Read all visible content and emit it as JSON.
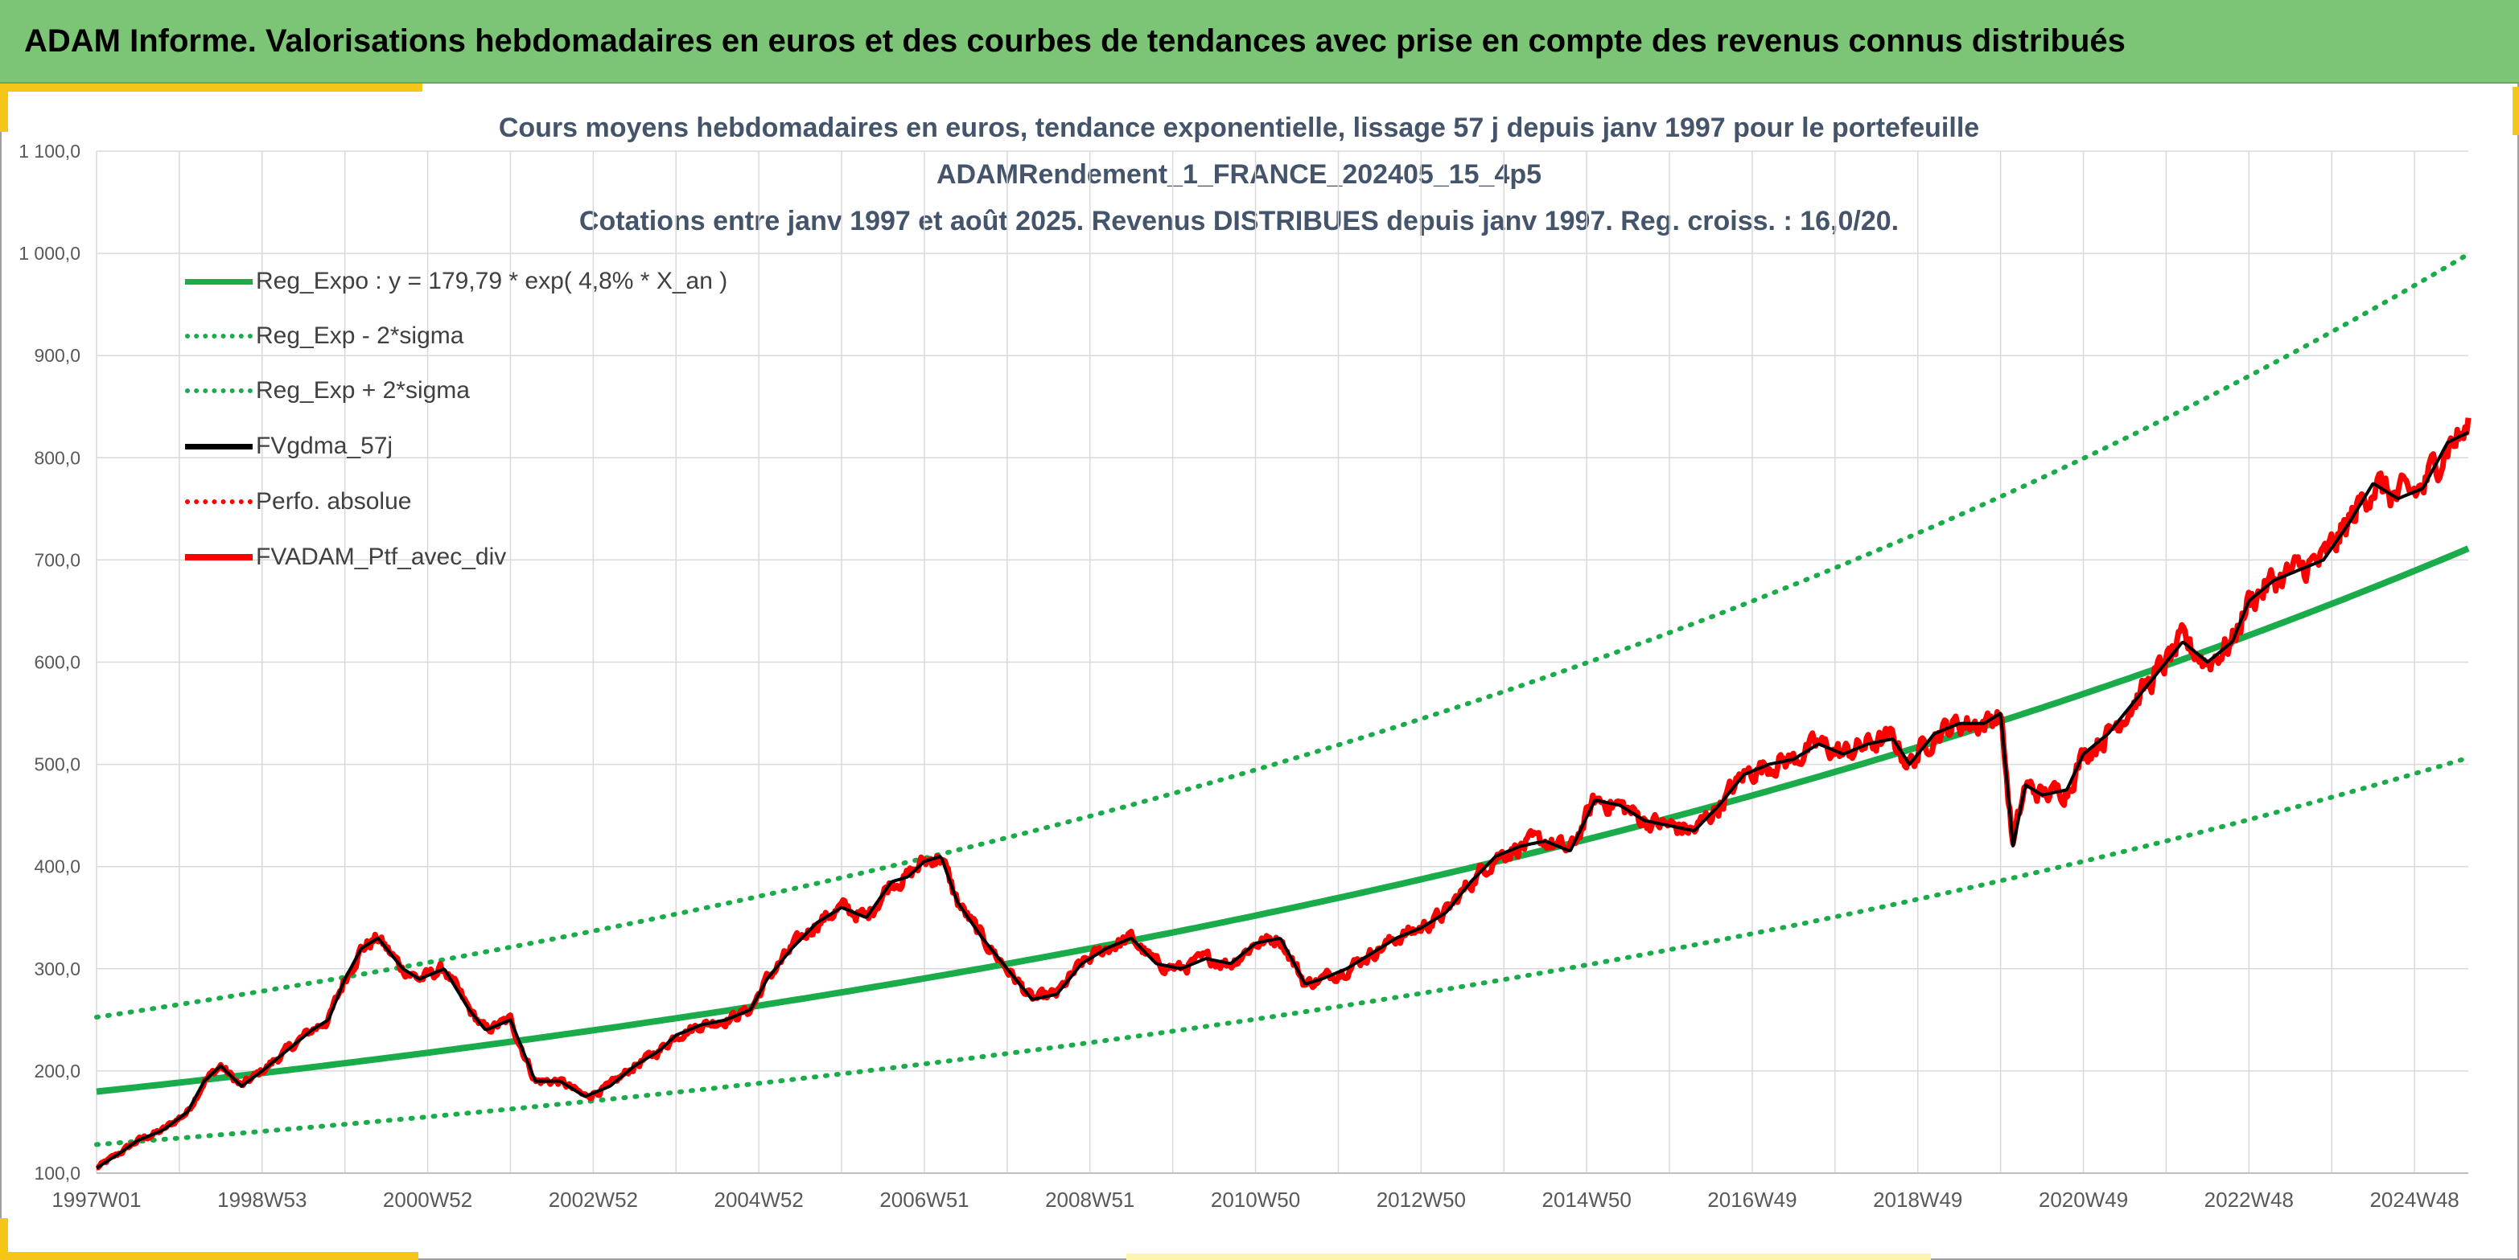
{
  "banner": {
    "title": "ADAM Informe. Valorisations hebdomadaires en euros et des courbes de tendances avec prise en compte des revenus connus distribués"
  },
  "chart_data": {
    "type": "line",
    "title_lines": [
      "Cours moyens hebdomadaires en euros, tendance exponentielle, lissage 57 j depuis janv 1997 pour le portefeuille",
      "ADAMRendement_1_FRANCE_202405_15_4p5",
      "Cotations entre janv 1997 et août 2025. Revenus DISTRIBUES depuis janv 1997. Reg. croiss. : 16,0/20."
    ],
    "xlabel": "",
    "ylabel": "",
    "x_tick_labels": [
      "1997W01",
      "1998W53",
      "2000W52",
      "2002W52",
      "2004W52",
      "2006W51",
      "2008W51",
      "2010W50",
      "2012W50",
      "2014W50",
      "2016W49",
      "2018W49",
      "2020W49",
      "2022W48",
      "2024W48"
    ],
    "x_range_years": [
      1997.0,
      2025.65
    ],
    "y_tick_labels": [
      "100,0",
      "200,0",
      "300,0",
      "400,0",
      "500,0",
      "600,0",
      "700,0",
      "800,0",
      "900,0",
      "1 000,0",
      "1 100,0"
    ],
    "ylim": [
      100,
      1100
    ],
    "grid": true,
    "legend_position": "top-left",
    "colors": {
      "trend": "#1aab4b",
      "band": "#1aab4b",
      "smooth": "#000000",
      "perf": "#ff0000",
      "portfolio": "#ff0000",
      "axis_text": "#595959",
      "title_text": "#44546a",
      "grid": "#d9d9d9"
    },
    "regression": {
      "a": 179.79,
      "rate_per_year": 0.048,
      "upper_factor": 1.405,
      "lower_factor": 0.712
    },
    "series": [
      {
        "name": "Reg_Expo : y = 179,79 * exp( 4,8% *  X_an )",
        "style": "solid",
        "color": "#1aab4b",
        "kind": "trend"
      },
      {
        "name": "Reg_Exp - 2*sigma",
        "style": "dotted",
        "color": "#1aab4b",
        "kind": "lower"
      },
      {
        "name": "Reg_Exp + 2*sigma",
        "style": "dotted",
        "color": "#1aab4b",
        "kind": "upper"
      },
      {
        "name": "FVgdma_57j",
        "style": "solid",
        "color": "#000000",
        "kind": "smooth"
      },
      {
        "name": "Perfo. absolue",
        "style": "dotted",
        "color": "#ff0000",
        "kind": "perf"
      },
      {
        "name": "FVADAM_Ptf_avec_div",
        "style": "solid",
        "color": "#ff0000",
        "kind": "portfolio"
      }
    ],
    "portfolio_points": {
      "x": [
        1997.0,
        1997.25,
        1997.5,
        1997.8,
        1998.1,
        1998.3,
        1998.5,
        1998.75,
        1999.0,
        1999.3,
        1999.6,
        1999.8,
        2000.0,
        2000.2,
        2000.4,
        2000.7,
        2000.9,
        2001.2,
        2001.5,
        2001.7,
        2002.0,
        2002.3,
        2002.6,
        2002.9,
        2003.2,
        2003.5,
        2003.8,
        2004.0,
        2004.3,
        2004.6,
        2004.9,
        2005.1,
        2005.4,
        2005.7,
        2006.0,
        2006.3,
        2006.6,
        2006.8,
        2007.0,
        2007.2,
        2007.4,
        2007.7,
        2008.0,
        2008.3,
        2008.6,
        2008.9,
        2009.2,
        2009.5,
        2009.8,
        2010.1,
        2010.4,
        2010.7,
        2011.0,
        2011.3,
        2011.6,
        2011.8,
        2012.1,
        2012.4,
        2012.7,
        2013.0,
        2013.3,
        2013.6,
        2013.9,
        2014.2,
        2014.5,
        2014.8,
        2015.1,
        2015.4,
        2015.7,
        2016.0,
        2016.3,
        2016.6,
        2016.9,
        2017.2,
        2017.5,
        2017.8,
        2018.1,
        2018.4,
        2018.7,
        2018.9,
        2019.2,
        2019.5,
        2019.8,
        2020.0,
        2020.15,
        2020.3,
        2020.5,
        2020.8,
        2021.0,
        2021.3,
        2021.6,
        2021.9,
        2022.2,
        2022.5,
        2022.8,
        2023.0,
        2023.3,
        2023.6,
        2023.9,
        2024.2,
        2024.5,
        2024.8,
        2025.1,
        2025.4,
        2025.65
      ],
      "y": [
        105,
        118,
        132,
        142,
        160,
        190,
        205,
        185,
        200,
        220,
        240,
        250,
        290,
        320,
        330,
        300,
        290,
        300,
        260,
        240,
        250,
        190,
        190,
        175,
        185,
        205,
        220,
        235,
        245,
        250,
        260,
        290,
        320,
        345,
        360,
        350,
        385,
        390,
        405,
        410,
        365,
        330,
        300,
        270,
        275,
        305,
        320,
        330,
        305,
        300,
        310,
        305,
        325,
        330,
        285,
        290,
        300,
        315,
        330,
        340,
        355,
        385,
        410,
        420,
        425,
        415,
        465,
        460,
        445,
        440,
        435,
        460,
        490,
        500,
        505,
        520,
        510,
        520,
        525,
        500,
        530,
        540,
        540,
        550,
        420,
        480,
        470,
        475,
        510,
        530,
        560,
        590,
        620,
        600,
        620,
        660,
        680,
        690,
        700,
        735,
        775,
        760,
        770,
        815,
        825
      ]
    }
  }
}
